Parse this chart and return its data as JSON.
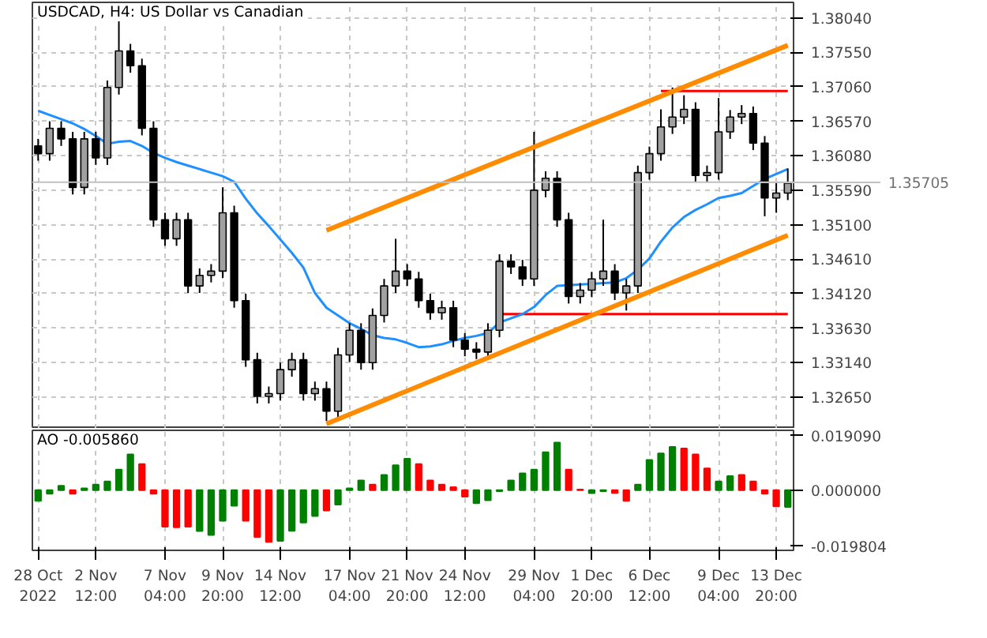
{
  "chart_data": [
    {
      "type": "candlestick",
      "title": "USDCAD, H4:  US Dollar vs Canadian",
      "categories": [
        null,
        null,
        null,
        null,
        null,
        null,
        null,
        null,
        null,
        null,
        null,
        null,
        null,
        null,
        null,
        null,
        null,
        null,
        null,
        null,
        null,
        null,
        null,
        null,
        null,
        null,
        null,
        null,
        null,
        null,
        null,
        null,
        null,
        null,
        null,
        null,
        null,
        null,
        null,
        null,
        null,
        null,
        null,
        null,
        null,
        null,
        null,
        null,
        null,
        null,
        null,
        null,
        null,
        null,
        null,
        null,
        null,
        null,
        null,
        null,
        null,
        null,
        null,
        null,
        null,
        null
      ],
      "ylim": [
        1.322,
        1.3826
      ],
      "yticks": [
        {
          "value": 1.3265,
          "label": "1.32650"
        },
        {
          "value": 1.3314,
          "label": "1.33140"
        },
        {
          "value": 1.3363,
          "label": "1.33630"
        },
        {
          "value": 1.3412,
          "label": "1.34120"
        },
        {
          "value": 1.3461,
          "label": "1.34610"
        },
        {
          "value": 1.351,
          "label": "1.35100"
        },
        {
          "value": 1.3559,
          "label": "1.35590"
        },
        {
          "value": 1.3608,
          "label": "1.36080"
        },
        {
          "value": 1.3657,
          "label": "1.36570"
        },
        {
          "value": 1.3706,
          "label": "1.37060"
        },
        {
          "value": 1.3755,
          "label": "1.37550"
        },
        {
          "value": 1.3804,
          "label": "1.38040"
        }
      ],
      "tick_labels": "y",
      "grid": true,
      "ref_lines": [
        {
          "axis": "y",
          "value": 1.35705,
          "label": "1.35705",
          "color": "#c0c0c0"
        }
      ],
      "series": [
        {
          "type": "line",
          "color": "#ff0000",
          "values": [
            null,
            null,
            null,
            null,
            null,
            null,
            null,
            null,
            null,
            null,
            null,
            null,
            null,
            null,
            null,
            null,
            null,
            null,
            null,
            null,
            null,
            null,
            null,
            null,
            null,
            null,
            null,
            null,
            null,
            null,
            null,
            null,
            null,
            null,
            null,
            null,
            null,
            null,
            null,
            null,
            null,
            null,
            null,
            null,
            null,
            null,
            null,
            null,
            null,
            null,
            null,
            null,
            null,
            null,
            1.37,
            null,
            null,
            null,
            null,
            null,
            null,
            null,
            null,
            null,
            null,
            1.37
          ]
        },
        {
          "type": "line",
          "color": "#ff0000",
          "values": [
            null,
            null,
            null,
            null,
            null,
            null,
            null,
            null,
            null,
            null,
            null,
            null,
            null,
            null,
            null,
            null,
            null,
            null,
            null,
            null,
            null,
            null,
            null,
            null,
            null,
            null,
            null,
            null,
            null,
            null,
            null,
            null,
            null,
            null,
            null,
            null,
            null,
            null,
            null,
            null,
            1.3383,
            null,
            null,
            null,
            null,
            null,
            null,
            null,
            null,
            null,
            null,
            null,
            null,
            null,
            null,
            null,
            null,
            null,
            null,
            null,
            null,
            null,
            null,
            null,
            null,
            1.3383
          ]
        },
        {
          "type": "line",
          "color": "#1e90ff",
          "values": [
            1.3672,
            1.3666,
            1.366,
            1.3654,
            1.3646,
            1.3636,
            1.3625,
            1.3628,
            1.3629,
            1.3622,
            1.3612,
            1.3605,
            1.3599,
            1.3594,
            1.3589,
            1.3584,
            1.3579,
            1.3571,
            1.3547,
            1.3526,
            1.3508,
            1.3489,
            1.347,
            1.3449,
            1.3413,
            1.3392,
            1.3381,
            1.337,
            1.3362,
            1.3353,
            1.3349,
            1.3347,
            1.3342,
            1.3336,
            1.3337,
            1.334,
            1.3345,
            1.3349,
            1.3352,
            1.3356,
            1.3371,
            1.3377,
            1.3383,
            1.3393,
            1.341,
            1.3423,
            1.3424,
            1.3425,
            1.3426,
            1.3427,
            1.3428,
            1.3434,
            1.3446,
            1.3462,
            1.3486,
            1.3506,
            1.3521,
            1.3531,
            1.3539,
            1.3548,
            1.3551,
            1.3555,
            1.3565,
            1.3575,
            1.3582,
            1.3589
          ]
        },
        {
          "type": "candlestick",
          "color": "#000000",
          "ohlc": [
            [
              1.3622,
              1.3632,
              1.3601,
              1.3611
            ],
            [
              1.3611,
              1.3657,
              1.3601,
              1.3647
            ],
            [
              1.3647,
              1.3657,
              1.3622,
              1.3632
            ],
            [
              1.3632,
              1.3642,
              1.3553,
              1.3563
            ],
            [
              1.3563,
              1.3642,
              1.3553,
              1.3632
            ],
            [
              1.3632,
              1.3642,
              1.3595,
              1.3605
            ],
            [
              1.3605,
              1.3715,
              1.3595,
              1.3705
            ],
            [
              1.3705,
              1.3799,
              1.3695,
              1.3757
            ],
            [
              1.3757,
              1.3767,
              1.3726,
              1.3736
            ],
            [
              1.3736,
              1.3746,
              1.3637,
              1.3647
            ],
            [
              1.3647,
              1.3657,
              1.3507,
              1.3517
            ],
            [
              1.3517,
              1.3527,
              1.348,
              1.349
            ],
            [
              1.349,
              1.3527,
              1.348,
              1.3517
            ],
            [
              1.3517,
              1.3527,
              1.3413,
              1.3423
            ],
            [
              1.3423,
              1.3448,
              1.3413,
              1.3438
            ],
            [
              1.3438,
              1.3454,
              1.3428,
              1.3444
            ],
            [
              1.3444,
              1.3563,
              1.3434,
              1.3527
            ],
            [
              1.3527,
              1.3537,
              1.3392,
              1.3402
            ],
            [
              1.3402,
              1.3412,
              1.3308,
              1.3318
            ],
            [
              1.3318,
              1.3328,
              1.3256,
              1.3266
            ],
            [
              1.3266,
              1.328,
              1.3256,
              1.327
            ],
            [
              1.327,
              1.3314,
              1.326,
              1.3304
            ],
            [
              1.3304,
              1.3328,
              1.3294,
              1.3318
            ],
            [
              1.3318,
              1.3328,
              1.326,
              1.327
            ],
            [
              1.327,
              1.3287,
              1.326,
              1.3277
            ],
            [
              1.3277,
              1.3287,
              1.3231,
              1.3245
            ],
            [
              1.3245,
              1.3335,
              1.3235,
              1.3325
            ],
            [
              1.3325,
              1.337,
              1.3315,
              1.336
            ],
            [
              1.336,
              1.337,
              1.3304,
              1.3314
            ],
            [
              1.3314,
              1.3391,
              1.3304,
              1.3381
            ],
            [
              1.3381,
              1.3433,
              1.3371,
              1.3423
            ],
            [
              1.3423,
              1.349,
              1.3413,
              1.3444
            ],
            [
              1.3444,
              1.3454,
              1.3423,
              1.3433
            ],
            [
              1.3433,
              1.3443,
              1.3392,
              1.3402
            ],
            [
              1.3402,
              1.3412,
              1.3375,
              1.3385
            ],
            [
              1.3385,
              1.3402,
              1.3375,
              1.3392
            ],
            [
              1.3392,
              1.3402,
              1.3336,
              1.3346
            ],
            [
              1.3346,
              1.3356,
              1.3323,
              1.3333
            ],
            [
              1.3333,
              1.3343,
              1.3319,
              1.3329
            ],
            [
              1.3329,
              1.337,
              1.3319,
              1.336
            ],
            [
              1.336,
              1.3468,
              1.335,
              1.3458
            ],
            [
              1.3458,
              1.3468,
              1.344,
              1.345
            ],
            [
              1.345,
              1.346,
              1.3423,
              1.3433
            ],
            [
              1.3433,
              1.3642,
              1.3423,
              1.3559
            ],
            [
              1.3559,
              1.3586,
              1.3549,
              1.3576
            ],
            [
              1.3576,
              1.3586,
              1.3507,
              1.3517
            ],
            [
              1.3517,
              1.3527,
              1.3398,
              1.3408
            ],
            [
              1.3408,
              1.3427,
              1.3398,
              1.3417
            ],
            [
              1.3417,
              1.3443,
              1.3407,
              1.3433
            ],
            [
              1.3433,
              1.3517,
              1.3423,
              1.3444
            ],
            [
              1.3444,
              1.3454,
              1.3403,
              1.3413
            ],
            [
              1.3413,
              1.3433,
              1.3388,
              1.3423
            ],
            [
              1.3423,
              1.3594,
              1.3413,
              1.3584
            ],
            [
              1.3584,
              1.3621,
              1.3574,
              1.3611
            ],
            [
              1.3611,
              1.3674,
              1.3601,
              1.3649
            ],
            [
              1.3649,
              1.3705,
              1.3639,
              1.3663
            ],
            [
              1.3663,
              1.3694,
              1.3653,
              1.3674
            ],
            [
              1.3674,
              1.3684,
              1.357,
              1.358
            ],
            [
              1.358,
              1.3594,
              1.357,
              1.3584
            ],
            [
              1.3584,
              1.369,
              1.3574,
              1.3642
            ],
            [
              1.3642,
              1.3673,
              1.3632,
              1.3663
            ],
            [
              1.3663,
              1.368,
              1.3653,
              1.3668
            ],
            [
              1.3668,
              1.3678,
              1.3616,
              1.3626
            ],
            [
              1.3626,
              1.3636,
              1.3522,
              1.3548
            ],
            [
              1.3548,
              1.3569,
              1.3527,
              1.3555
            ],
            [
              1.3555,
              1.359,
              1.3545,
              1.3569
            ]
          ]
        },
        {
          "type": "line",
          "color": "#ff8c00",
          "values": [
            null,
            null,
            null,
            null,
            null,
            null,
            null,
            null,
            null,
            null,
            null,
            null,
            null,
            null,
            null,
            null,
            null,
            null,
            null,
            null,
            null,
            null,
            null,
            null,
            null,
            1.3502,
            null,
            null,
            null,
            null,
            null,
            null,
            null,
            null,
            null,
            null,
            null,
            null,
            null,
            null,
            null,
            null,
            null,
            null,
            null,
            null,
            null,
            null,
            null,
            null,
            null,
            null,
            null,
            null,
            null,
            null,
            null,
            null,
            null,
            null,
            null,
            null,
            null,
            null,
            null,
            1.3765
          ]
        },
        {
          "type": "line",
          "color": "#ff8c00",
          "values": [
            null,
            null,
            null,
            null,
            null,
            null,
            null,
            null,
            null,
            null,
            null,
            null,
            null,
            null,
            null,
            null,
            null,
            null,
            null,
            null,
            null,
            null,
            null,
            null,
            null,
            1.3227,
            null,
            null,
            null,
            null,
            null,
            null,
            null,
            null,
            null,
            null,
            null,
            null,
            null,
            null,
            null,
            null,
            null,
            null,
            null,
            null,
            null,
            null,
            null,
            null,
            null,
            null,
            null,
            null,
            null,
            null,
            null,
            null,
            null,
            null,
            null,
            null,
            null,
            null,
            null,
            1.3495
          ]
        }
      ]
    },
    {
      "type": "bar",
      "title": "AO -0.005860",
      "categories": [
        "28 Oct 2022",
        null,
        null,
        null,
        null,
        "2 Nov 12:00",
        null,
        null,
        null,
        null,
        null,
        "7 Nov 04:00",
        null,
        null,
        null,
        null,
        "9 Nov 20:00",
        null,
        null,
        null,
        null,
        "14 Nov 12:00",
        null,
        null,
        null,
        null,
        null,
        "17 Nov 04:00",
        null,
        null,
        null,
        null,
        "21 Nov 20:00",
        null,
        null,
        null,
        null,
        "24 Nov 12:00",
        null,
        null,
        null,
        null,
        null,
        "29 Nov 04:00",
        null,
        null,
        null,
        null,
        "1 Dec 20:00",
        null,
        null,
        null,
        null,
        "6 Dec 12:00",
        null,
        null,
        null,
        null,
        null,
        "9 Dec 04:00",
        null,
        null,
        null,
        null,
        "13 Dec 20:00",
        null
      ],
      "ylim": [
        -0.0212,
        0.021
      ],
      "yticks": [
        {
          "value": -0.019804,
          "label": "-0.019804"
        },
        {
          "value": 0,
          "label": "0.000000"
        },
        {
          "value": 0.01909,
          "label": "0.019090"
        }
      ],
      "grid": "x",
      "values": [
        -0.0038,
        -0.0013,
        0.0015,
        -0.0013,
        0.0006,
        0.0019,
        0.003,
        0.0072,
        0.0125,
        0.0091,
        -0.0013,
        -0.0129,
        -0.0131,
        -0.0129,
        -0.0144,
        -0.0158,
        -0.0108,
        -0.0055,
        -0.0108,
        -0.0165,
        -0.0182,
        -0.0179,
        -0.0143,
        -0.0114,
        -0.0091,
        -0.0072,
        -0.0051,
        0.0006,
        0.0034,
        0.0019,
        0.0053,
        0.0087,
        0.011,
        0.0091,
        0.0034,
        0.0019,
        0.001,
        -0.0023,
        -0.0046,
        -0.0036,
        -0.0004,
        0.0034,
        0.0059,
        0.0072,
        0.0133,
        0.0167,
        0.0072,
        0.0002,
        -0.0011,
        -0.0004,
        -0.001,
        -0.0038,
        0.0019,
        0.0106,
        0.0129,
        0.0152,
        0.0146,
        0.0125,
        0.0076,
        0.003,
        0.0049,
        0.0053,
        0.003,
        -0.0013,
        -0.0057,
        -0.0059
      ],
      "colors": [
        "#008000",
        "#008000",
        "#008000",
        "#ff0000",
        "#008000",
        "#008000",
        "#008000",
        "#008000",
        "#008000",
        "#ff0000",
        "#ff0000",
        "#ff0000",
        "#ff0000",
        "#ff0000",
        "#008000",
        "#008000",
        "#008000",
        "#008000",
        "#ff0000",
        "#ff0000",
        "#ff0000",
        "#008000",
        "#008000",
        "#008000",
        "#008000",
        "#ff0000",
        "#008000",
        "#008000",
        "#008000",
        "#ff0000",
        "#008000",
        "#008000",
        "#008000",
        "#ff0000",
        "#ff0000",
        "#ff0000",
        "#ff0000",
        "#ff0000",
        "#008000",
        "#008000",
        "#008000",
        "#008000",
        "#008000",
        "#008000",
        "#008000",
        "#008000",
        "#ff0000",
        "#ff0000",
        "#008000",
        "#008000",
        "#ff0000",
        "#ff0000",
        "#008000",
        "#008000",
        "#008000",
        "#008000",
        "#ff0000",
        "#ff0000",
        "#ff0000",
        "#008000",
        "#008000",
        "#ff0000",
        "#ff0000",
        "#ff0000",
        "#ff0000",
        "#008000"
      ]
    }
  ]
}
